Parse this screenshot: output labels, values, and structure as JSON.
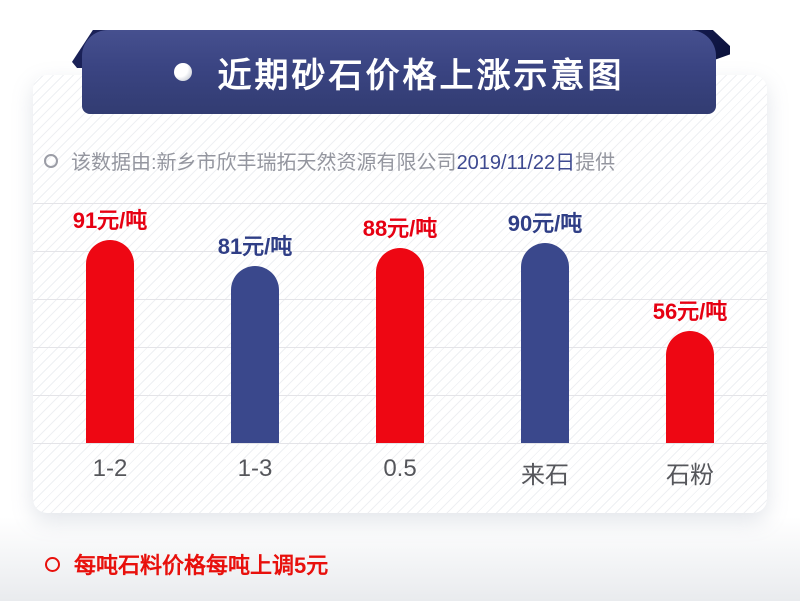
{
  "header": {
    "title": "近期砂石价格上涨示意图"
  },
  "subtitle": {
    "prefix": "该数据由:新乡市欣丰瑞拓天然资源有限公司",
    "date": "2019/11/22日",
    "suffix": "提供"
  },
  "chart_data": {
    "type": "bar",
    "title": "近期砂石价格上涨示意图",
    "categories": [
      "1-2",
      "1-3",
      "0.5",
      "来石",
      "石粉"
    ],
    "values": [
      91,
      81,
      88,
      90,
      56
    ],
    "unit": "元/吨",
    "value_labels": [
      "91元/吨",
      "81元/吨",
      "88元/吨",
      "90元/吨",
      "56元/吨"
    ],
    "bar_colors": [
      "#ee0713",
      "#3a488c",
      "#ee0713",
      "#3a488c",
      "#ee0713"
    ],
    "value_label_colors": [
      "#e60012",
      "#2f3e86",
      "#e60012",
      "#2f3e86",
      "#e60012"
    ],
    "ylim": [
      0,
      100
    ],
    "grid": true,
    "legend": false
  },
  "footer": {
    "note": "每吨石料价格每吨上调5元"
  },
  "colors": {
    "banner_navy": "#3a4482",
    "ribbon_dark": "#141b4d",
    "bar_red": "#ee0713",
    "bar_blue": "#3a488c",
    "subtitle_gray": "#94969f",
    "subtitle_date_navy": "#3d4990",
    "category_gray": "#55565b",
    "gridline": "#e4e4e8",
    "footer_red": "#e8100c"
  }
}
